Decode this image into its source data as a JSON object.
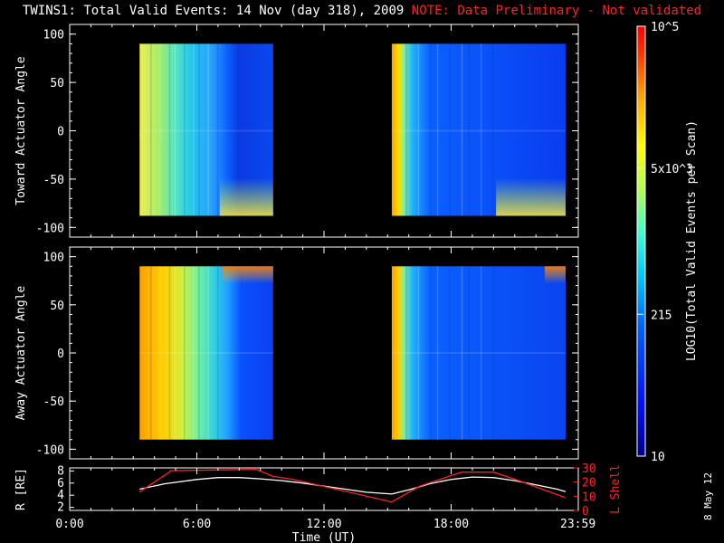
{
  "title": {
    "main": "TWINS1: Total Valid Events: 14 Nov (day 318), 2009",
    "note": "NOTE: Data Preliminary - Not validated"
  },
  "chart_data": [
    {
      "type": "heatmap",
      "name": "toward",
      "ylabel": "Toward Actuator Angle",
      "yticks": [
        100,
        50,
        0,
        -50,
        -100
      ],
      "ylim": [
        -110,
        110
      ],
      "blocks": [
        {
          "t_start": 3.3,
          "t_end": 9.6,
          "y_min": -88,
          "y_max": 90
        },
        {
          "t_start": 15.2,
          "t_end": 23.4,
          "y_min": -88,
          "y_max": 90
        }
      ]
    },
    {
      "type": "heatmap",
      "name": "away",
      "ylabel": "Away Actuator Angle",
      "yticks": [
        100,
        50,
        0,
        -50,
        -100
      ],
      "ylim": [
        -110,
        110
      ],
      "blocks": [
        {
          "t_start": 3.3,
          "t_end": 9.6,
          "y_min": -90,
          "y_max": 90
        },
        {
          "t_start": 15.2,
          "t_end": 23.4,
          "y_min": -90,
          "y_max": 90
        }
      ]
    },
    {
      "type": "line",
      "name": "orbit",
      "xlabel": "Time (UT)",
      "xticks": [
        "0:00",
        "6:00",
        "12:00",
        "18:00",
        "23:59"
      ],
      "ylabel_left": "R [RE]",
      "ylabel_right": "L Shell",
      "yticks_left": [
        2,
        4,
        6,
        8
      ],
      "yticks_right": [
        0,
        10,
        20,
        30
      ],
      "ylim_left": [
        1.5,
        8.5
      ],
      "ylim_right": [
        0,
        30
      ],
      "series": [
        {
          "color": "#ffffff",
          "x": [
            3.3,
            4.5,
            6,
            7,
            8,
            9,
            10,
            11,
            12,
            13,
            14,
            15.2,
            16,
            17,
            18,
            19,
            20,
            21,
            22,
            23,
            23.4
          ],
          "values": [
            5.0,
            5.9,
            6.6,
            6.9,
            6.9,
            6.7,
            6.4,
            6.0,
            5.5,
            5.0,
            4.5,
            4.2,
            4.9,
            5.9,
            6.6,
            7.0,
            6.9,
            6.4,
            5.7,
            5.0,
            4.6
          ]
        },
        {
          "color": "#ff2020",
          "x": [
            3.3,
            4.7,
            4.75,
            8.8,
            9.6,
            10.5,
            15.2,
            16.5,
            18.5,
            20,
            21,
            23.4
          ],
          "values": [
            13,
            27,
            28,
            29,
            24,
            22,
            6,
            17,
            27,
            27,
            22,
            9
          ]
        }
      ]
    }
  ],
  "colorbar": {
    "label": "LOG10(Total Valid Events per Scan)",
    "ticks": [
      "10^5",
      "5x10^3",
      "215",
      "10"
    ],
    "tick_fracs": [
      1.0,
      0.67,
      0.33,
      0.0
    ]
  },
  "footer": {
    "date": "8 May 12"
  }
}
